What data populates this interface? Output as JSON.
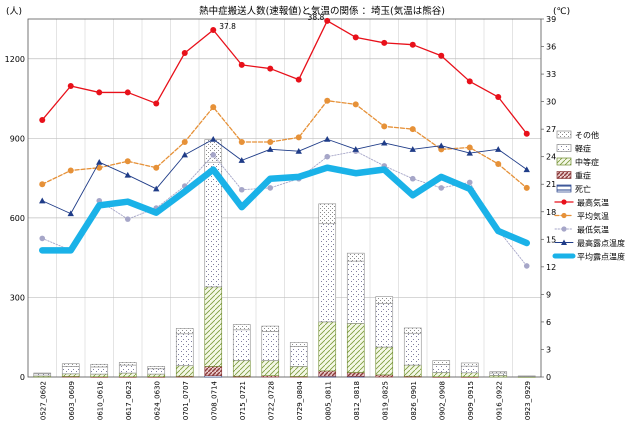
{
  "chart_data": {
    "type": "bar",
    "title": "熱中症搬送人数(速報値)と気温の関係 ：埼玉(気温は熊谷)",
    "left_unit": "(人)",
    "right_unit": "(℃)",
    "categories": [
      "0527_0602",
      "0603_0609",
      "0610_0616",
      "0617_0623",
      "0624_0630",
      "0701_0707",
      "0708_0714",
      "0715_0721",
      "0722_0728",
      "0729_0804",
      "0805_0811",
      "0812_0818",
      "0819_0825",
      "0826_0901",
      "0902_0908",
      "0909_0915",
      "0916_0922",
      "0923_0929"
    ],
    "ylim_left": [
      0,
      1350
    ],
    "yticks_left": [
      0,
      300,
      600,
      900,
      1200
    ],
    "ylim_right": [
      0,
      39
    ],
    "yticks_right": [
      0,
      3,
      6,
      9,
      12,
      15,
      18,
      21,
      24,
      27,
      30,
      33,
      36,
      39
    ],
    "stacked_series": [
      {
        "name": "死亡",
        "color": "#1f3c88",
        "values": [
          0,
          0,
          0,
          0,
          0,
          0,
          5,
          0,
          0,
          0,
          3,
          2,
          0,
          0,
          0,
          0,
          0,
          0
        ]
      },
      {
        "name": "重症",
        "color": "#8b3a3a",
        "values": [
          0,
          2,
          1,
          1,
          1,
          3,
          35,
          3,
          5,
          2,
          20,
          15,
          8,
          3,
          1,
          1,
          0,
          0
        ]
      },
      {
        "name": "中等症",
        "color": "#9bbb59",
        "values": [
          4,
          10,
          10,
          14,
          10,
          40,
          300,
          60,
          57,
          38,
          185,
          185,
          105,
          42,
          16,
          15,
          6,
          1
        ]
      },
      {
        "name": "軽症",
        "color": "#c0c0c0",
        "values": [
          8,
          28,
          27,
          30,
          20,
          120,
          470,
          115,
          110,
          75,
          370,
          235,
          165,
          120,
          30,
          25,
          9,
          2
        ]
      },
      {
        "name": "その他",
        "color": "#bfbfbf",
        "values": [
          3,
          10,
          10,
          10,
          9,
          20,
          85,
          20,
          20,
          15,
          75,
          30,
          25,
          20,
          15,
          12,
          5,
          1
        ]
      }
    ],
    "line_series": [
      {
        "name": "最高気温",
        "color": "#e8101a",
        "values": [
          28.0,
          31.7,
          31.0,
          31.0,
          29.8,
          35.3,
          37.8,
          34.0,
          33.6,
          32.4,
          38.8,
          37.0,
          36.4,
          36.2,
          35.0,
          32.2,
          30.5,
          26.5
        ]
      },
      {
        "name": "平均気温",
        "color": "#e69138",
        "values": [
          21.0,
          22.5,
          22.8,
          23.5,
          22.8,
          25.6,
          29.4,
          25.6,
          25.6,
          26.1,
          30.1,
          29.7,
          27.3,
          27.0,
          24.8,
          25.0,
          23.2,
          20.6
        ]
      },
      {
        "name": "最低気温",
        "color": "#a6a6c8",
        "values": [
          15.1,
          13.8,
          19.2,
          17.2,
          18.4,
          20.8,
          24.2,
          20.4,
          20.6,
          21.6,
          24.0,
          24.6,
          23.0,
          21.6,
          20.6,
          21.2,
          16.0,
          12.1
        ]
      },
      {
        "name": "最高露点温度",
        "color": "#1f3c88",
        "values": [
          19.2,
          17.8,
          23.4,
          22.0,
          20.5,
          24.2,
          25.9,
          23.6,
          24.8,
          24.6,
          25.9,
          24.8,
          25.5,
          24.8,
          25.2,
          24.4,
          24.8,
          22.6
        ]
      },
      {
        "name": "平均露点温度",
        "color": "#1ab2e8",
        "values": [
          13.8,
          13.8,
          18.7,
          19.1,
          17.9,
          20.2,
          22.6,
          18.5,
          21.6,
          21.8,
          22.8,
          22.2,
          22.6,
          19.8,
          21.8,
          20.5,
          15.9,
          14.6
        ]
      }
    ],
    "annotations": [
      {
        "text": "37.8",
        "series": "最高気温",
        "index": 6
      },
      {
        "text": "38.8",
        "series": "最高気温",
        "index": 10
      }
    ],
    "legend_position": "right",
    "grid": true
  }
}
